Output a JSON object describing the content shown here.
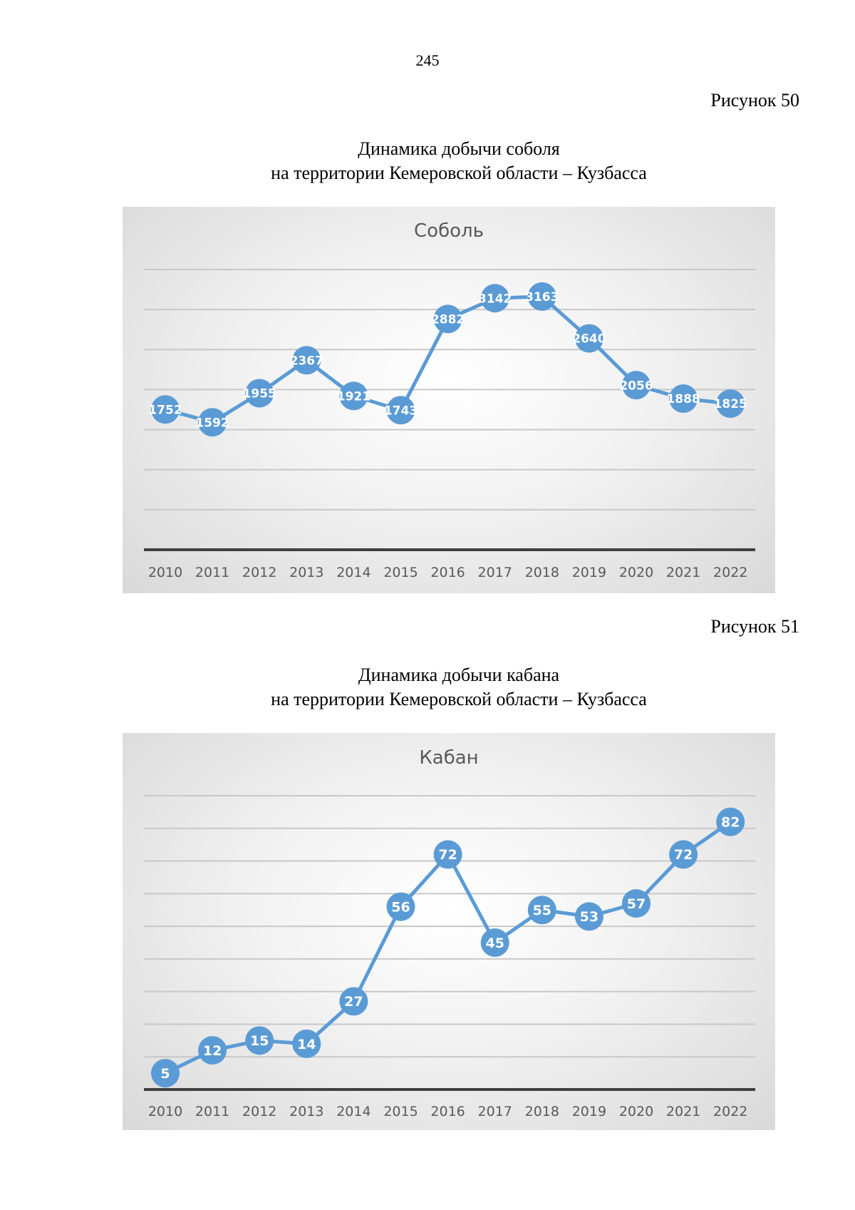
{
  "page": {
    "number": "245",
    "figures": [
      {
        "label": "Рисунок 50",
        "title_line1": "Динамика добычи соболя",
        "title_line2": "на территории Кемеровской области – Кузбасса"
      },
      {
        "label": "Рисунок 51",
        "title_line1": "Динамика добычи кабана",
        "title_line2": "на территории Кемеровской области – Кузбасса"
      }
    ]
  },
  "colors": {
    "series": "#5b9bd5",
    "grid": "#c8c8c8",
    "axis": "#404040",
    "label": "#ffffff"
  },
  "chart_data": [
    {
      "type": "line",
      "title": "Соболь",
      "xlabel": "",
      "ylabel": "",
      "categories": [
        "2010",
        "2011",
        "2012",
        "2013",
        "2014",
        "2015",
        "2016",
        "2017",
        "2018",
        "2019",
        "2020",
        "2021",
        "2022"
      ],
      "series": [
        {
          "name": "Соболь",
          "values": [
            1752,
            1592,
            1955,
            2367,
            1921,
            1743,
            2882,
            3142,
            3163,
            2640,
            2056,
            1888,
            1825
          ]
        }
      ],
      "ylim": [
        0,
        3500
      ],
      "ytick_step": 500,
      "grid": true,
      "legend": "none",
      "data_labels": true
    },
    {
      "type": "line",
      "title": "Кабан",
      "xlabel": "",
      "ylabel": "",
      "categories": [
        "2010",
        "2011",
        "2012",
        "2013",
        "2014",
        "2015",
        "2016",
        "2017",
        "2018",
        "2019",
        "2020",
        "2021",
        "2022"
      ],
      "series": [
        {
          "name": "Кабан",
          "values": [
            5,
            12,
            15,
            14,
            27,
            56,
            72,
            45,
            55,
            53,
            57,
            72,
            82
          ]
        }
      ],
      "ylim": [
        0,
        90
      ],
      "ytick_step": 10,
      "grid": true,
      "legend": "none",
      "data_labels": true
    }
  ]
}
